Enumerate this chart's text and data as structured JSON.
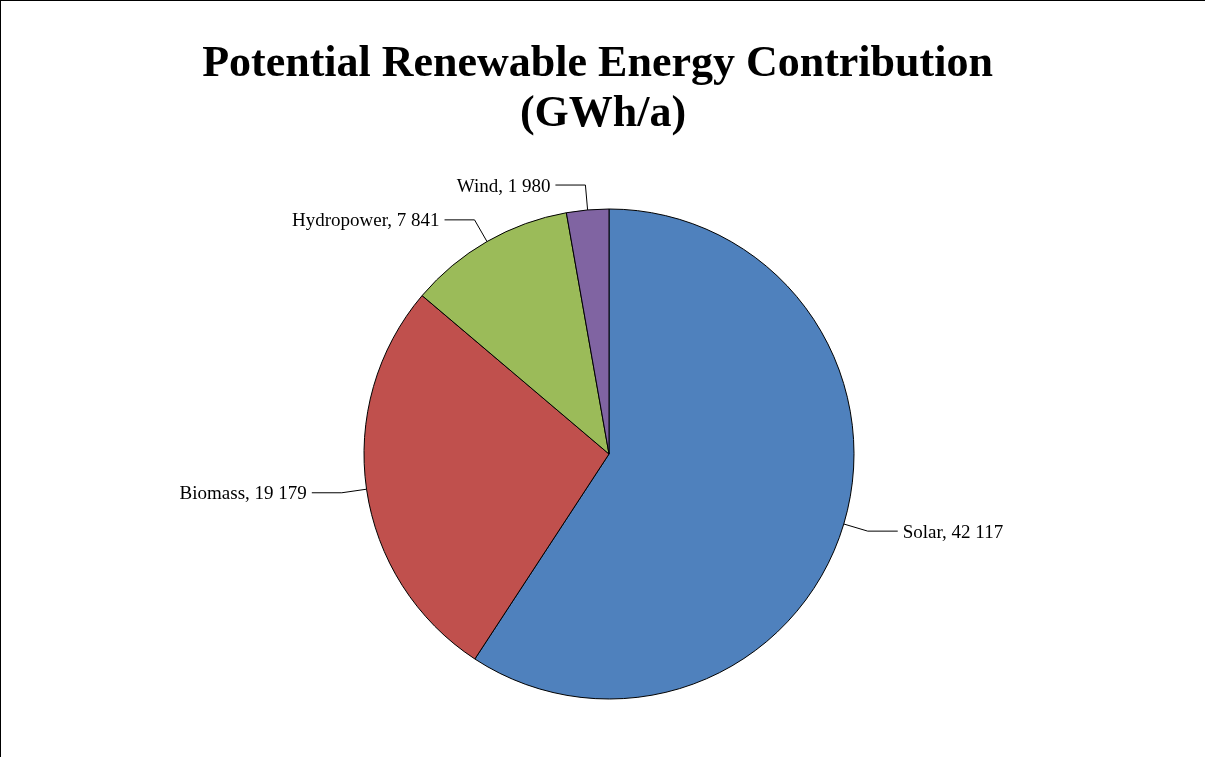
{
  "chart_data": {
    "type": "pie",
    "title": "Potential Renewable Energy Contribution (GWh/a)",
    "categories": [
      "Solar",
      "Biomass",
      "Hydropower",
      "Wind"
    ],
    "values": [
      42117,
      19179,
      7841,
      1980
    ],
    "value_labels": [
      "42 117",
      "19 179",
      "7 841",
      "1 980"
    ],
    "colors": [
      "#4f81bd",
      "#c0504d",
      "#9bbb59",
      "#8064a2"
    ],
    "legend": false
  }
}
